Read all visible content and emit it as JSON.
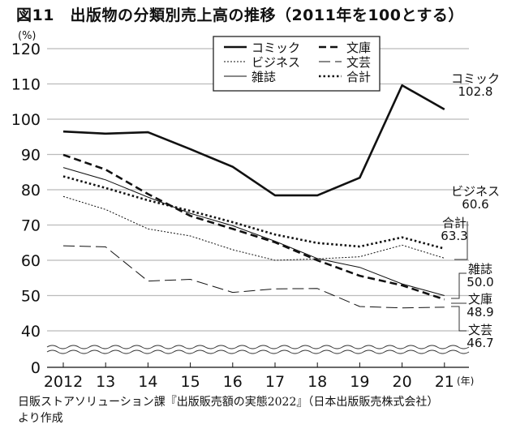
{
  "chart_data": {
    "type": "line",
    "title": "図11　出版物の分類別売上高の推移（2011年を100とする）",
    "ylabel": "(%)",
    "xlabel": "(年)",
    "x": [
      "2012",
      "13",
      "14",
      "15",
      "16",
      "17",
      "18",
      "19",
      "20",
      "21"
    ],
    "yticks": [
      0,
      40,
      50,
      60,
      70,
      80,
      90,
      100,
      110,
      120
    ],
    "ylim": [
      0,
      120
    ],
    "axis_break": [
      0,
      40
    ],
    "grid": true,
    "legend_position": "top-center",
    "series": [
      {
        "name": "コミック",
        "style": "solid-thick",
        "values": [
          96.5,
          95.9,
          96.3,
          91.5,
          86.5,
          78.4,
          78.4,
          83.4,
          109.6,
          102.8
        ],
        "end_label": "102.8"
      },
      {
        "name": "ビジネス",
        "style": "dotted-thin",
        "values": [
          78.1,
          74.4,
          68.9,
          66.9,
          63.0,
          60.0,
          60.4,
          61.0,
          64.3,
          60.6
        ],
        "end_label": "60.6"
      },
      {
        "name": "雑誌",
        "style": "solid-thin",
        "values": [
          86.3,
          82.8,
          77.9,
          73.3,
          69.8,
          65.4,
          60.5,
          58.0,
          53.3,
          50.0
        ],
        "end_label": "50.0"
      },
      {
        "name": "文庫",
        "style": "dashed-thick",
        "values": [
          89.9,
          85.7,
          78.8,
          72.6,
          68.9,
          65.1,
          60.0,
          55.6,
          52.9,
          48.9
        ],
        "end_label": "48.9"
      },
      {
        "name": "文芸",
        "style": "dashed-long",
        "values": [
          64.1,
          63.8,
          54.1,
          54.6,
          50.9,
          51.9,
          52.0,
          46.9,
          46.5,
          46.7
        ],
        "end_label": "46.7"
      },
      {
        "name": "合計",
        "style": "dotted-thick",
        "values": [
          83.8,
          80.5,
          77.0,
          74.0,
          70.8,
          67.3,
          64.9,
          63.9,
          66.5,
          63.3
        ],
        "end_label": "63.3"
      }
    ]
  },
  "source": {
    "line1": "日販ストアソリューション課『出版販売額の実態2022』（日本出版販売株式会社）",
    "line2": "より作成"
  }
}
